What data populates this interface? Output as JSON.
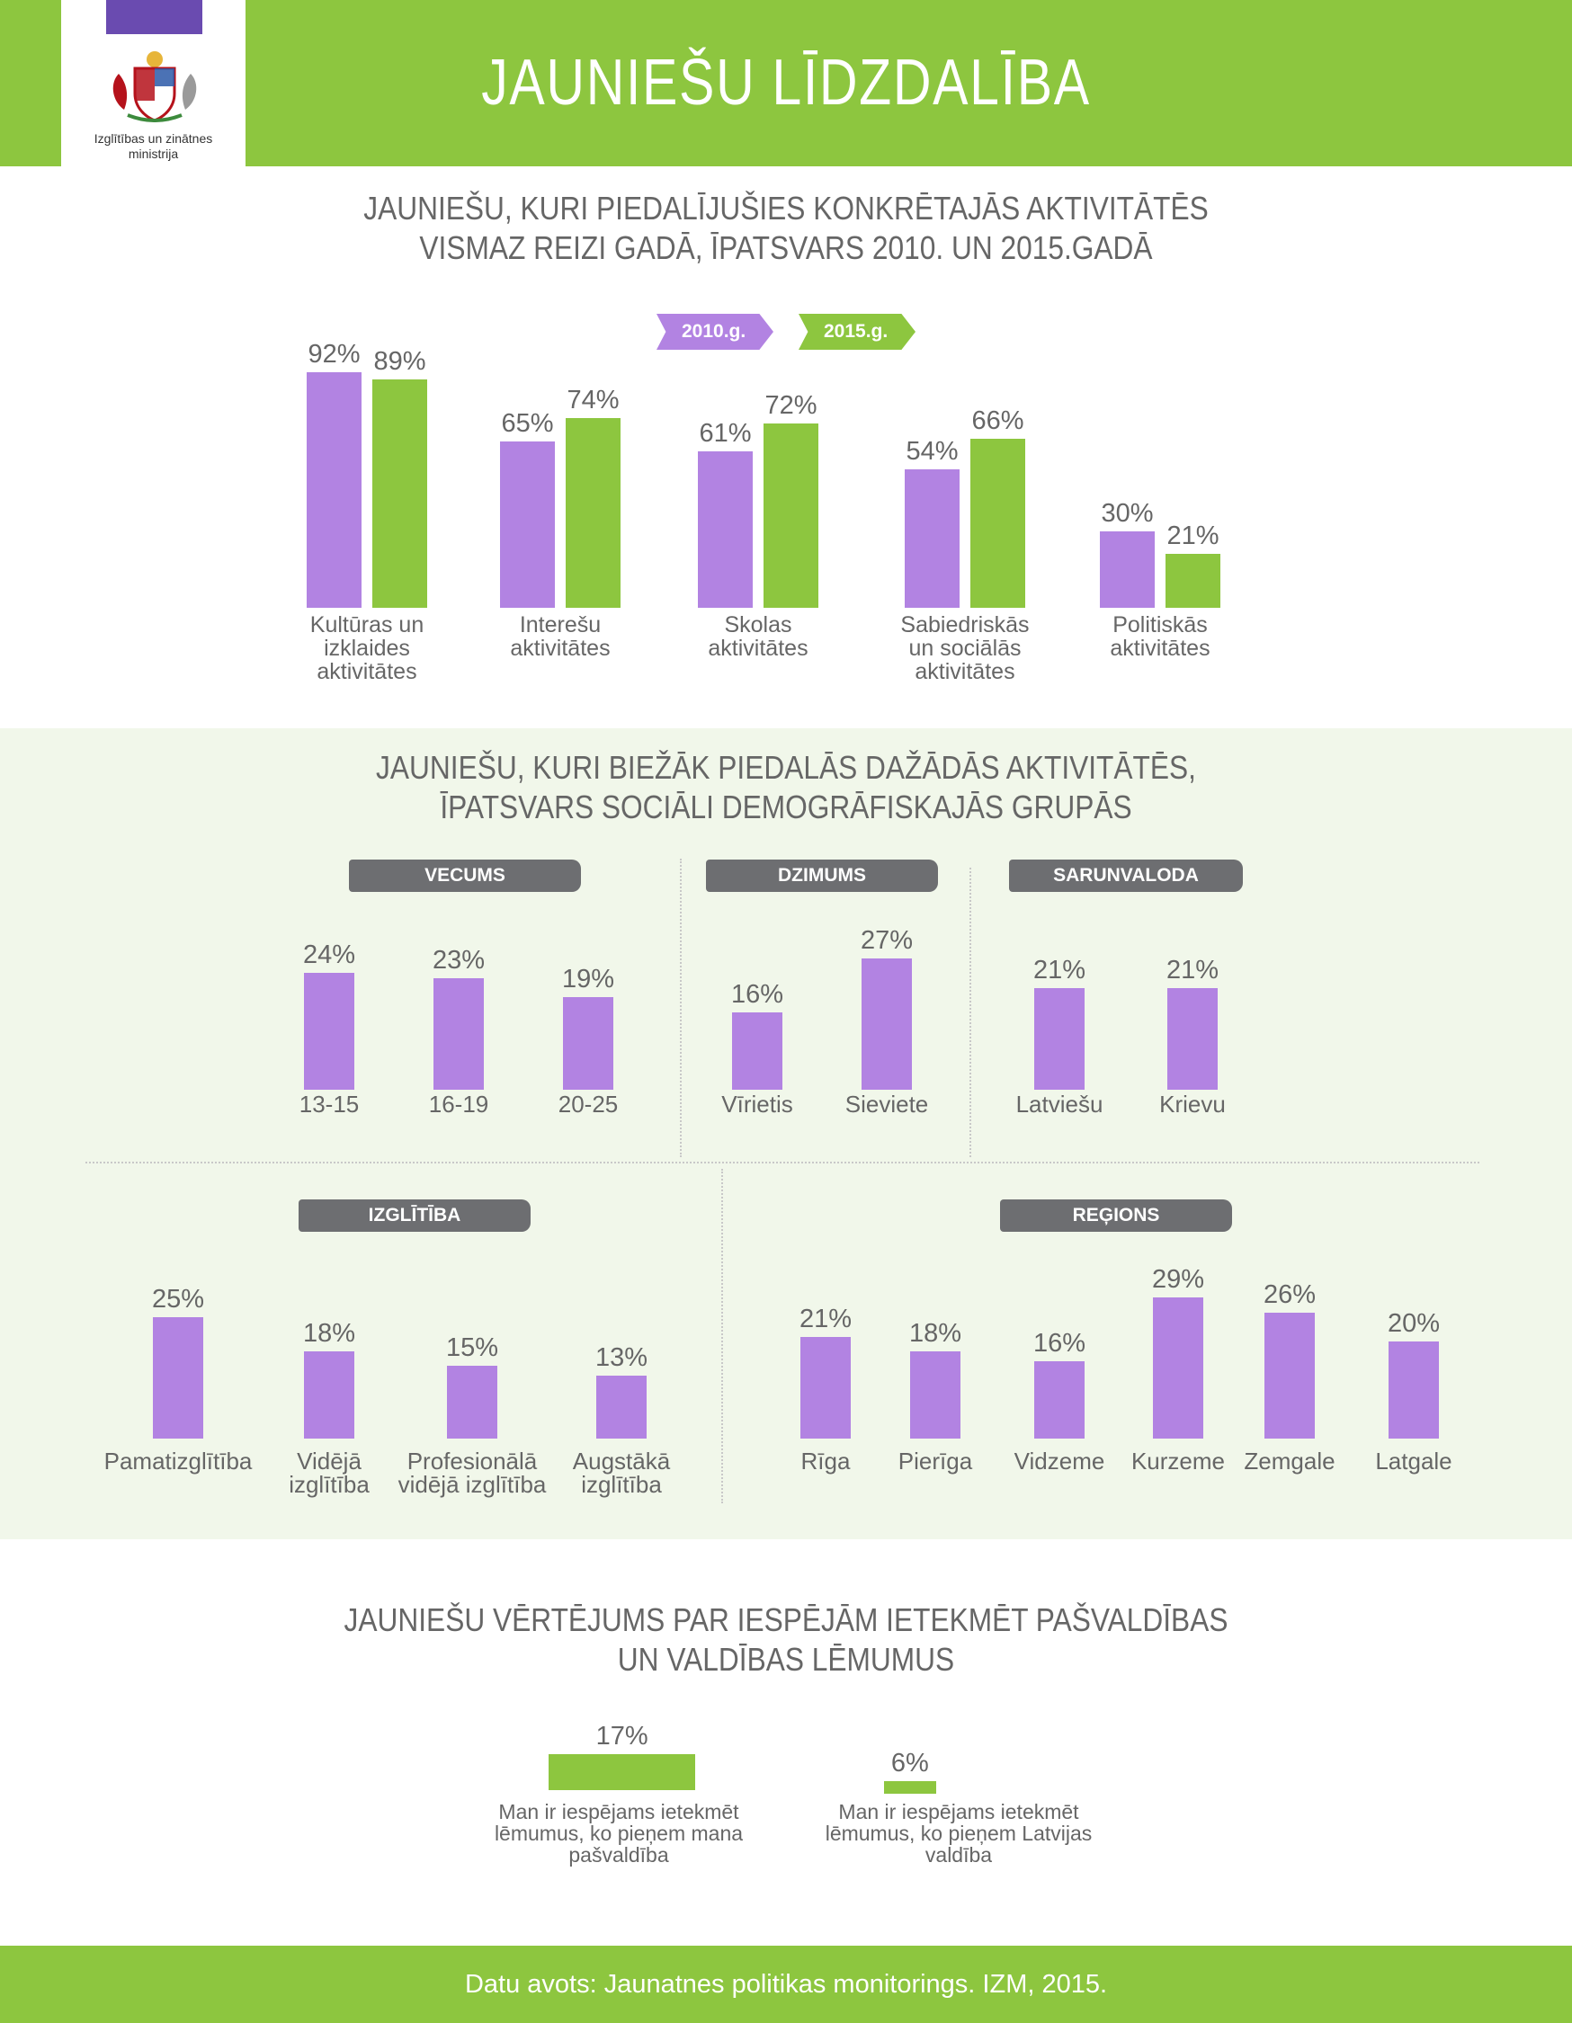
{
  "header": {
    "title": "JAUNIEŠU LĪDZDALĪBA",
    "logo_text_line1": "Izglītības un zinātnes",
    "logo_text_line2": "ministrija"
  },
  "colors": {
    "green": "#8dc63f",
    "purple": "#b283e2",
    "dark_tag": "#6d6e71",
    "band": "#f1f7ea",
    "flag": "#6a4bb0"
  },
  "section1": {
    "title_line1": "JAUNIEŠU, KURI PIEDALĪJUŠIES KONKRĒTAJĀS AKTIVITĀTĒS",
    "title_line2": "VISMAZ REIZI GADĀ, ĪPATSVARS 2010. UN 2015.GADĀ",
    "legend_2010": "2010.g.",
    "legend_2015": "2015.g."
  },
  "section2": {
    "title_line1": "JAUNIEŠU, KURI BIEŽĀK PIEDALĀS DAŽĀDĀS AKTIVITĀTĒS,",
    "title_line2": "ĪPATSVARS SOCIĀLI DEMOGRĀFISKAJĀS GRUPĀS",
    "tag_age": "VECUMS",
    "tag_gender": "DZIMUMS",
    "tag_language": "SARUNVALODA",
    "tag_education": "IZGLĪTĪBA",
    "tag_region": "REĢIONS"
  },
  "section3": {
    "title_line1": "JAUNIEŠU VĒRTĒJUMS PAR IESPĒJĀM IETEKMĒT PAŠVALDĪBAS",
    "title_line2": "UN VALDĪBAS LĒMUMUS"
  },
  "footer": {
    "source": "Datu avots: Jaunatnes politikas monitorings. IZM, 2015."
  },
  "chart_data": [
    {
      "type": "bar",
      "title": "JAUNIEŠU, KURI PIEDALĪJUŠIES KONKRĒTAJĀS AKTIVITĀTĒS VISMAZ REIZI GADĀ, ĪPATSVARS 2010. UN 2015.GADĀ",
      "categories": [
        "Kultūras un\nizklaides\naktivitātes",
        "Interešu\naktivitātes",
        "Skolas\naktivitātes",
        "Sabiedriskās\nun sociālās\naktivitātes",
        "Politiskās\naktivitātes"
      ],
      "series": [
        {
          "name": "2010.g.",
          "values": [
            92,
            65,
            61,
            54,
            30
          ],
          "labels": [
            "92%",
            "65%",
            "61%",
            "54%",
            "30%"
          ]
        },
        {
          "name": "2015.g.",
          "values": [
            89,
            74,
            72,
            66,
            21
          ],
          "labels": [
            "89%",
            "74%",
            "72%",
            "66%",
            "21%"
          ]
        }
      ],
      "ylim": [
        0,
        100
      ]
    },
    {
      "type": "bar",
      "title": "VECUMS",
      "categories": [
        "13-15",
        "16-19",
        "20-25"
      ],
      "values": [
        24,
        23,
        19
      ],
      "labels": [
        "24%",
        "23%",
        "19%"
      ]
    },
    {
      "type": "bar",
      "title": "DZIMUMS",
      "categories": [
        "Vīrietis",
        "Sieviete"
      ],
      "values": [
        16,
        27
      ],
      "labels": [
        "16%",
        "27%"
      ]
    },
    {
      "type": "bar",
      "title": "SARUNVALODA",
      "categories": [
        "Latviešu",
        "Krievu"
      ],
      "values": [
        21,
        21
      ],
      "labels": [
        "21%",
        "21%"
      ]
    },
    {
      "type": "bar",
      "title": "IZGLĪTĪBA",
      "categories": [
        "Pamatizglītība",
        "Vidējā\nizglītība",
        "Profesionālā\nvidējā izglītība",
        "Augstākā\nizglītība"
      ],
      "values": [
        25,
        18,
        15,
        13
      ],
      "labels": [
        "25%",
        "18%",
        "15%",
        "13%"
      ]
    },
    {
      "type": "bar",
      "title": "REĢIONS",
      "categories": [
        "Rīga",
        "Pierīga",
        "Vidzeme",
        "Kurzeme",
        "Zemgale",
        "Latgale"
      ],
      "values": [
        21,
        18,
        16,
        29,
        26,
        20
      ],
      "labels": [
        "21%",
        "18%",
        "16%",
        "29%",
        "26%",
        "20%"
      ]
    },
    {
      "type": "bar",
      "title": "JAUNIEŠU VĒRTĒJUMS PAR IESPĒJĀM IETEKMĒT PAŠVALDĪBAS UN VALDĪBAS LĒMUMUS",
      "orientation": "horizontal",
      "categories": [
        "Man ir iespējams ietekmēt\nlēmumus, ko pieņem mana\npašvaldība",
        "Man ir iespējams ietekmēt\nlēmumus, ko pieņem Latvijas\nvaldība"
      ],
      "values": [
        17,
        6
      ],
      "labels": [
        "17%",
        "6%"
      ]
    }
  ]
}
